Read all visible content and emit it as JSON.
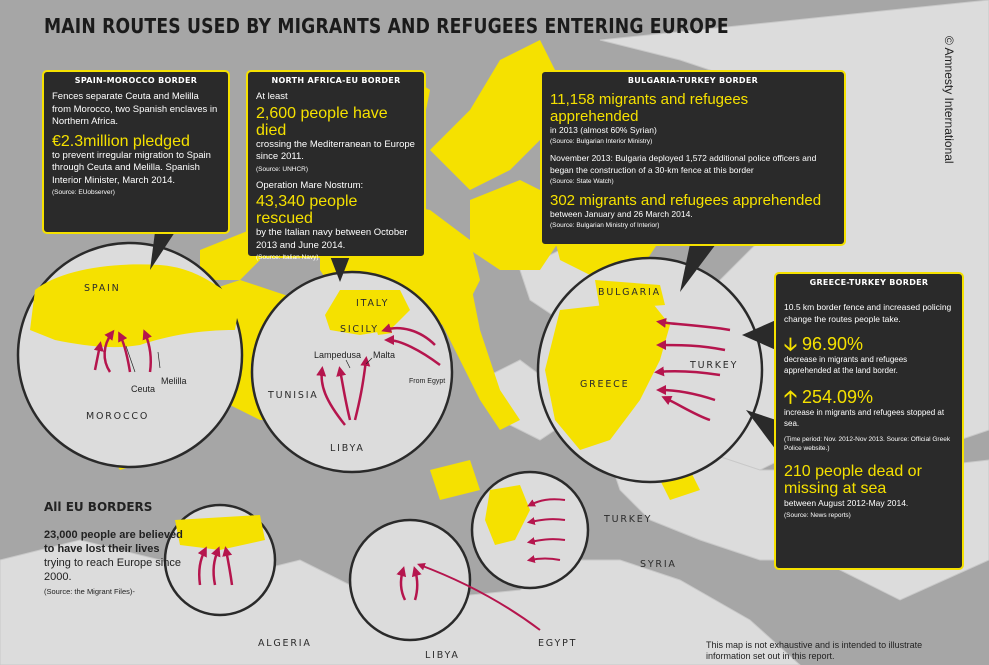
{
  "title": "MAIN ROUTES USED BY MIGRANTS AND REFUGEES ENTERING EUROPE",
  "credit": "© Amnesty International",
  "colors": {
    "eu_yellow": "#f5e100",
    "box_bg": "#2a2a2a",
    "land_grey": "#dcdcdc",
    "sea_grey": "#a6a6a6",
    "route_red": "#b5154d"
  },
  "boxes": {
    "spain_morocco": {
      "heading": "SPAIN-MOROCCO BORDER",
      "text1": "Fences separate Ceuta and Melilla from Morocco, two Spanish enclaves in Northern Africa.",
      "highlight": "€2.3million pledged",
      "text2": "to prevent irregular migration to Spain through Ceuta and Melilla. Spanish Interior Minister, March 2014.",
      "source": "(Source: EUobserver)"
    },
    "north_africa": {
      "heading": "NORTH AFRICA-EU BORDER",
      "text1": "At least",
      "highlight1": "2,600 people have died",
      "text2": "crossing the Mediterranean to Europe since 2011.",
      "source1": "(Source: UNHCR)",
      "text3": "Operation Mare Nostrum:",
      "highlight2": "43,340 people rescued",
      "text4": "by the Italian navy between October 2013 and June 2014.",
      "source2": "(Source: Italian Navy)"
    },
    "bulgaria_turkey": {
      "heading": "BULGARIA-TURKEY BORDER",
      "highlight1": "11,158 migrants and refugees apprehended",
      "text1": "in 2013 (almost 60% Syrian)",
      "source1": "(Source: Bulgarian Interior Ministry)",
      "text2": "November 2013: Bulgaria deployed 1,572 additional police officers and began the construction of a 30-km fence at this border",
      "source2": "(Source: State Watch)",
      "highlight2": "302 migrants and refugees apprehended",
      "text3": "between January and 26 March 2014.",
      "source3": "(Source: Bulgarian Ministry of Interior)"
    },
    "greece_turkey": {
      "heading": "GREECE-TURKEY BORDER",
      "text1": "10.5 km border fence and increased policing change the routes people take.",
      "stat1_icon": "down-arrow-icon",
      "stat1": "96.90%",
      "text2": "decrease in migrants and refugees apprehended at the land border.",
      "stat2_icon": "up-arrow-icon",
      "stat2": "254.09%",
      "text3": "increase in migrants and refugees stopped at sea.",
      "source1": "(Time period: Nov. 2012-Nov 2013. Source: Official Greek Police website.)",
      "highlight": "210 people dead or missing at sea",
      "text4": "between August 2012-May 2014.",
      "source2": "(Source: News reports)"
    }
  },
  "eu_borders": {
    "heading": "All EU BORDERS",
    "bold": "23,000 people are believed to have lost their lives",
    "text": "trying to reach Europe since 2000.",
    "source": "(Source: the Migrant Files)-"
  },
  "map_labels": {
    "spain": "SPAIN",
    "morocco": "MOROCCO",
    "ceuta": "Ceuta",
    "melilla": "Melilla",
    "italy": "ITALY",
    "sicily": "SICILY",
    "lampedusa": "Lampedusa",
    "malta": "Malta",
    "from_egypt": "From Egypt",
    "tunisia": "TUNISIA",
    "libya_circle": "LIBYA",
    "bulgaria": "BULGARIA",
    "turkey_circle": "TURKEY",
    "greece": "GREECE",
    "turkey": "TURKEY",
    "syria": "SYRIA",
    "algeria": "ALGERIA",
    "libya": "LIBYA",
    "egypt": "EGYPT"
  },
  "note": "This map is not exhaustive and is intended to illustrate information set out in this report."
}
